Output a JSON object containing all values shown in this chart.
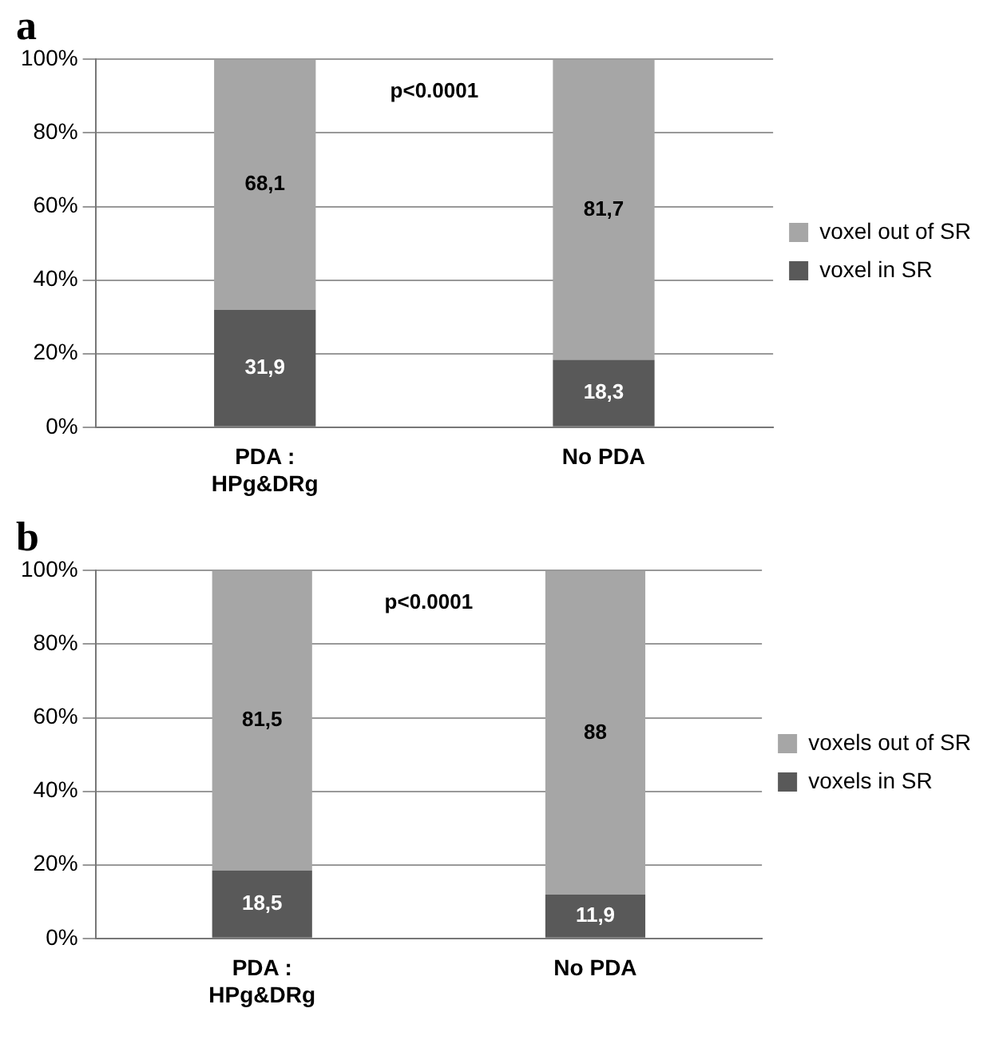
{
  "chart_data": [
    {
      "type": "bar",
      "title": "a",
      "categories": [
        "PDA : HPg&DRg",
        "No PDA"
      ],
      "stacked": true,
      "ylim": [
        0,
        100
      ],
      "yticks": [
        {
          "value": 0,
          "label": "0%"
        },
        {
          "value": 20,
          "label": "20%"
        },
        {
          "value": 40,
          "label": "40%"
        },
        {
          "value": 60,
          "label": "60%"
        },
        {
          "value": 80,
          "label": "80%"
        },
        {
          "value": 100,
          "label": "100%"
        }
      ],
      "grid": "y",
      "legend": "right",
      "annotations": [
        "p<0.0001"
      ],
      "series": [
        {
          "name": "voxel in SR",
          "color": "#595959",
          "values": [
            31.9,
            18.3
          ],
          "value_labels": [
            "31,9",
            "18,3"
          ]
        },
        {
          "name": "voxel out of SR",
          "color": "#a6a6a6",
          "values": [
            68.1,
            81.7
          ],
          "value_labels": [
            "68,1",
            "81,7"
          ]
        }
      ]
    },
    {
      "type": "bar",
      "title": "b",
      "categories": [
        "PDA : HPg&DRg",
        "No PDA"
      ],
      "stacked": true,
      "ylim": [
        0,
        100
      ],
      "yticks": [
        {
          "value": 0,
          "label": "0%"
        },
        {
          "value": 20,
          "label": "20%"
        },
        {
          "value": 40,
          "label": "40%"
        },
        {
          "value": 60,
          "label": "60%"
        },
        {
          "value": 80,
          "label": "80%"
        },
        {
          "value": 100,
          "label": "100%"
        }
      ],
      "grid": "y",
      "legend": "right",
      "annotations": [
        "p<0.0001"
      ],
      "series": [
        {
          "name": "voxels in SR",
          "color": "#595959",
          "values": [
            18.5,
            11.9
          ],
          "value_labels": [
            "18,5",
            "11,9"
          ]
        },
        {
          "name": "voxels out of SR",
          "color": "#a6a6a6",
          "values": [
            81.5,
            88
          ],
          "value_labels": [
            "81,5",
            "88"
          ]
        }
      ]
    }
  ]
}
